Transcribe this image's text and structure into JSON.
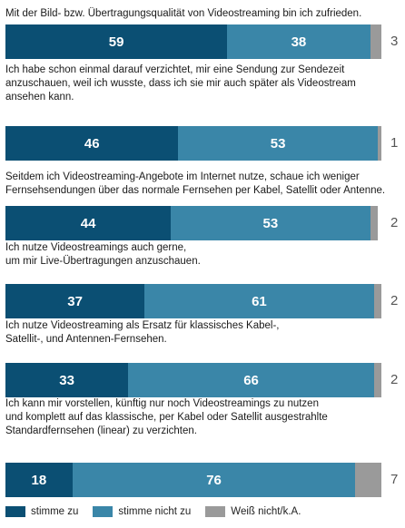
{
  "chart_data": {
    "type": "bar",
    "stacked": true,
    "orientation": "horizontal",
    "xlim": [
      0,
      100
    ],
    "colors": {
      "agree": "#0b4f73",
      "disagree": "#3a86a8",
      "unknown": "#9a9a9a"
    },
    "questions": [
      "Mit der Bild- bzw. Übertragungsqualität von Videostreaming bin ich zufrieden.",
      "Ich habe schon einmal darauf verzichtet, mir eine  Sendung zur Sendezeit\nanzuschauen, weil ich wusste, dass ich sie mir auch später als Videostream\nansehen kann.",
      "Seitdem ich Videostreaming-Angebote im Internet nutze, schaue ich weniger\nFernsehsendungen über das normale Fernsehen per Kabel, Satellit oder Antenne.",
      "Ich nutze Videostreamings auch gerne,\num mir Live-Übertragungen anzuschauen.",
      "Ich nutze Videostreaming als Ersatz für klassisches Kabel-,\nSatellit-, und Antennen-Fernsehen.",
      "Ich kann mir vorstellen, künftig nur noch Videostreamings zu nutzen\nund komplett auf das klassische, per Kabel oder Satellit ausgestrahlte\nStandardfernsehen (linear) zu verzichten."
    ],
    "series": [
      {
        "name": "stimme zu",
        "values": [
          59,
          46,
          44,
          37,
          33,
          18
        ]
      },
      {
        "name": "stimme nicht zu",
        "values": [
          38,
          53,
          53,
          61,
          66,
          76
        ]
      },
      {
        "name": "Weiß nicht/k.A.",
        "values": [
          3,
          1,
          2,
          2,
          2,
          7
        ]
      }
    ]
  }
}
